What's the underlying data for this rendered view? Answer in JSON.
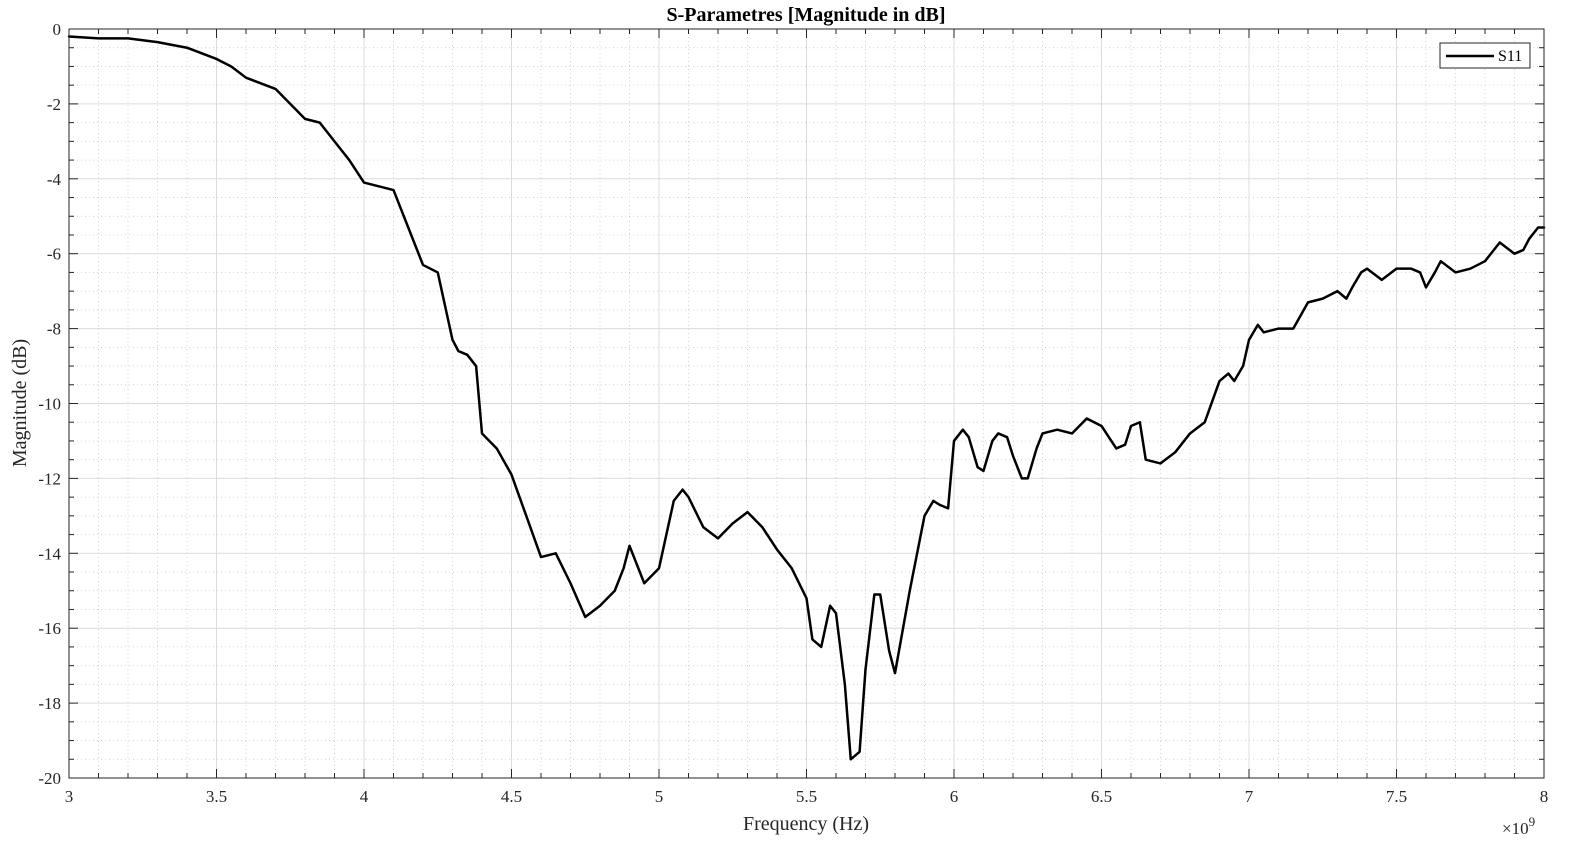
{
  "chart_data": {
    "type": "line",
    "title": "S-Parametres [Magnitude in dB]",
    "xlabel": "Frequency (Hz)",
    "ylabel": "Magnitude (dB)",
    "x_exponent_base": "×10",
    "x_exponent_power": "9",
    "xlim": [
      3,
      8
    ],
    "ylim": [
      -20,
      0
    ],
    "x_ticks": [
      3,
      3.5,
      4,
      4.5,
      5,
      5.5,
      6,
      6.5,
      7,
      7.5,
      8
    ],
    "x_tick_labels": [
      "3",
      "3.5",
      "4",
      "4.5",
      "5",
      "5.5",
      "6",
      "6.5",
      "7",
      "7.5",
      "8"
    ],
    "y_ticks": [
      0,
      -2,
      -4,
      -6,
      -8,
      -10,
      -12,
      -14,
      -16,
      -18,
      -20
    ],
    "y_tick_labels": [
      "0",
      "-2",
      "-4",
      "-6",
      "-8",
      "-10",
      "-12",
      "-14",
      "-16",
      "-18",
      "-20"
    ],
    "grid": true,
    "minor_grid": true,
    "legend_position": "top-right",
    "series": [
      {
        "name": "S11",
        "color": "#000000",
        "x": [
          3.0,
          3.1,
          3.2,
          3.3,
          3.4,
          3.5,
          3.55,
          3.6,
          3.7,
          3.75,
          3.8,
          3.85,
          3.9,
          3.95,
          4.0,
          4.05,
          4.1,
          4.15,
          4.2,
          4.25,
          4.3,
          4.32,
          4.35,
          4.38,
          4.4,
          4.45,
          4.5,
          4.55,
          4.6,
          4.65,
          4.7,
          4.75,
          4.8,
          4.85,
          4.88,
          4.9,
          4.95,
          5.0,
          5.05,
          5.08,
          5.1,
          5.15,
          5.2,
          5.25,
          5.3,
          5.35,
          5.4,
          5.45,
          5.5,
          5.52,
          5.55,
          5.58,
          5.6,
          5.63,
          5.65,
          5.68,
          5.7,
          5.73,
          5.75,
          5.78,
          5.8,
          5.85,
          5.9,
          5.93,
          5.95,
          5.98,
          6.0,
          6.03,
          6.05,
          6.08,
          6.1,
          6.13,
          6.15,
          6.18,
          6.2,
          6.23,
          6.25,
          6.28,
          6.3,
          6.35,
          6.4,
          6.45,
          6.5,
          6.55,
          6.58,
          6.6,
          6.63,
          6.65,
          6.7,
          6.75,
          6.8,
          6.85,
          6.9,
          6.93,
          6.95,
          6.98,
          7.0,
          7.03,
          7.05,
          7.1,
          7.15,
          7.2,
          7.25,
          7.3,
          7.33,
          7.35,
          7.38,
          7.4,
          7.45,
          7.5,
          7.55,
          7.58,
          7.6,
          7.63,
          7.65,
          7.7,
          7.75,
          7.8,
          7.85,
          7.9,
          7.93,
          7.95,
          7.98,
          8.0
        ],
        "y": [
          -0.2,
          -0.25,
          -0.25,
          -0.35,
          -0.5,
          -0.8,
          -1.0,
          -1.3,
          -1.6,
          -2.0,
          -2.4,
          -2.5,
          -3.0,
          -3.5,
          -4.1,
          -4.2,
          -4.3,
          -5.3,
          -6.3,
          -6.5,
          -8.3,
          -8.6,
          -8.7,
          -9.0,
          -10.8,
          -11.2,
          -11.9,
          -13.0,
          -14.1,
          -14.0,
          -14.8,
          -15.7,
          -15.4,
          -15.0,
          -14.4,
          -13.8,
          -14.8,
          -14.4,
          -12.6,
          -12.3,
          -12.5,
          -13.3,
          -13.6,
          -13.2,
          -12.9,
          -13.3,
          -13.9,
          -14.4,
          -15.2,
          -16.3,
          -16.5,
          -15.4,
          -15.6,
          -17.5,
          -19.5,
          -19.3,
          -17.1,
          -15.1,
          -15.1,
          -16.6,
          -17.2,
          -15.0,
          -13.0,
          -12.6,
          -12.7,
          -12.8,
          -11.0,
          -10.7,
          -10.9,
          -11.7,
          -11.8,
          -11.0,
          -10.8,
          -10.9,
          -11.4,
          -12.0,
          -12.0,
          -11.2,
          -10.8,
          -10.7,
          -10.8,
          -10.4,
          -10.6,
          -11.2,
          -11.1,
          -10.6,
          -10.5,
          -11.5,
          -11.6,
          -11.3,
          -10.8,
          -10.5,
          -9.4,
          -9.2,
          -9.4,
          -9.0,
          -8.3,
          -7.9,
          -8.1,
          -8.0,
          -8.0,
          -7.3,
          -7.2,
          -7.0,
          -7.2,
          -6.9,
          -6.5,
          -6.4,
          -6.7,
          -6.4,
          -6.4,
          -6.5,
          -6.9,
          -6.5,
          -6.2,
          -6.5,
          -6.4,
          -6.2,
          -5.7,
          -6.0,
          -5.9,
          -5.6,
          -5.3,
          -5.3
        ]
      }
    ]
  }
}
